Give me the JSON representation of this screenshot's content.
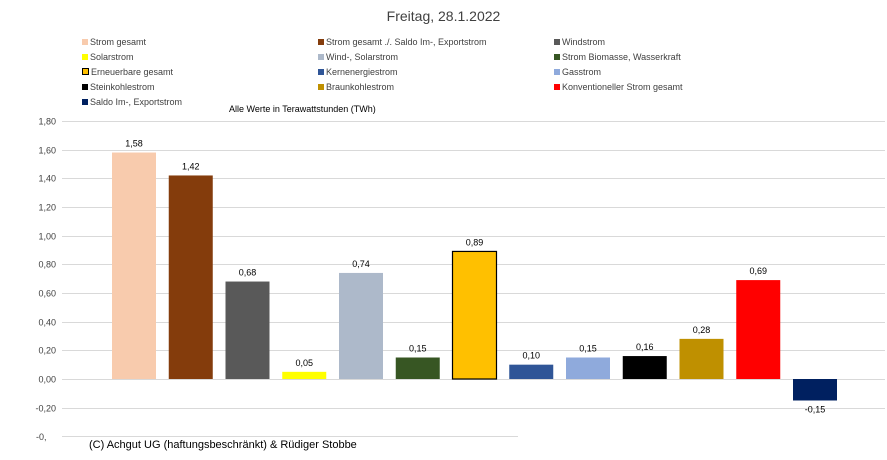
{
  "chart_data": {
    "type": "bar",
    "title": "Freitag, 28.1.2022",
    "subtitle": "Alle Werte in Terawattstunden (TWh)",
    "credit": "(C) Achgut UG (haftungsbeschränkt) & Rüdiger Stobbe",
    "categories": [
      "Strom gesamt",
      "Strom gesamt ./. Saldo Im-, Exportstrom",
      "Windstrom",
      "Solarstrom",
      "Wind-, Solarstrom",
      "Strom Biomasse, Wasserkraft",
      "Erneuerbare gesamt",
      "Kernenergiestrom",
      "Gasstrom",
      "Steinkohlestrom",
      "Braunkohlestrom",
      "Konventioneller Strom gesamt",
      "Saldo Im-, Exportstrom"
    ],
    "values": [
      1.58,
      1.42,
      0.68,
      0.05,
      0.74,
      0.15,
      0.89,
      0.1,
      0.15,
      0.16,
      0.28,
      0.69,
      -0.15
    ],
    "value_labels": [
      "1,58",
      "1,42",
      "0,68",
      "0,05",
      "0,74",
      "0,15",
      "0,89",
      "0,10",
      "0,15",
      "0,16",
      "0,28",
      "0,69",
      "-0,15"
    ],
    "colors": [
      "#F8CBAD",
      "#843C0C",
      "#595959",
      "#FFFF00",
      "#ADB9CA",
      "#375623",
      "#FFC000",
      "#2F5597",
      "#8FAADC",
      "#000000",
      "#BF9000",
      "#FF0000",
      "#002060"
    ],
    "outlined": [
      false,
      false,
      false,
      false,
      false,
      false,
      true,
      false,
      false,
      false,
      false,
      false,
      false
    ],
    "yticks": [
      1.8,
      1.6,
      1.4,
      1.2,
      1.0,
      0.8,
      0.6,
      0.4,
      0.2,
      0.0,
      -0.2
    ],
    "ytick_labels": [
      "1,80",
      "1,60",
      "1,40",
      "1,20",
      "1,00",
      "0,80",
      "0,60",
      "0,40",
      "0,20",
      "0,00",
      "-0,20"
    ],
    "ytick_cut_label": "-0,",
    "ylim": [
      -0.4,
      1.8
    ],
    "grid": true,
    "legend_placement": "top",
    "legend_columns": 3
  }
}
